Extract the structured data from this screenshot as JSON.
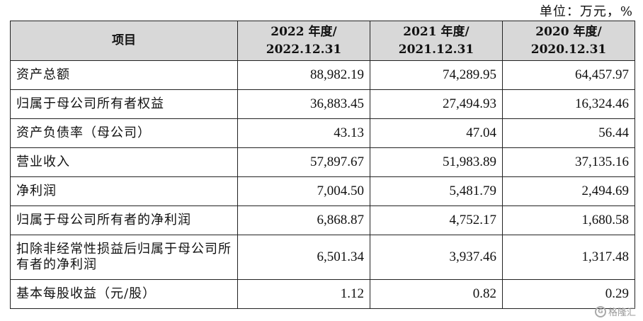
{
  "unit_label": "单位：万元，%",
  "table": {
    "headers": [
      {
        "line1": "项目",
        "line2": ""
      },
      {
        "line1": "2022 年度/",
        "line2": "2022.12.31"
      },
      {
        "line1": "2021 年度/",
        "line2": "2021.12.31"
      },
      {
        "line1": "2020 年度/",
        "line2": "2020.12.31"
      }
    ],
    "rows": [
      {
        "label": "资产总额",
        "values": [
          "88,982.19",
          "74,289.95",
          "64,457.97"
        ]
      },
      {
        "label": "归属于母公司所有者权益",
        "values": [
          "36,883.45",
          "27,494.93",
          "16,324.46"
        ]
      },
      {
        "label": "资产负债率（母公司）",
        "values": [
          "43.13",
          "47.04",
          "56.44"
        ]
      },
      {
        "label": "营业收入",
        "values": [
          "57,897.67",
          "51,983.89",
          "37,135.16"
        ]
      },
      {
        "label": "净利润",
        "values": [
          "7,004.50",
          "5,481.79",
          "2,494.69"
        ]
      },
      {
        "label": "归属于母公司所有者的净利润",
        "values": [
          "6,868.87",
          "4,752.17",
          "1,680.58"
        ]
      },
      {
        "label": "扣除非经常性损益后归属于母公司所有者的净利润",
        "values": [
          "6,501.34",
          "3,937.46",
          "1,317.48"
        ]
      },
      {
        "label": "基本每股收益（元/股）",
        "values": [
          "1.12",
          "0.82",
          "0.29"
        ]
      }
    ]
  },
  "watermark": {
    "icon_name": "gelonghui-logo-icon",
    "icon_text": "G",
    "text": "格隆汇"
  }
}
